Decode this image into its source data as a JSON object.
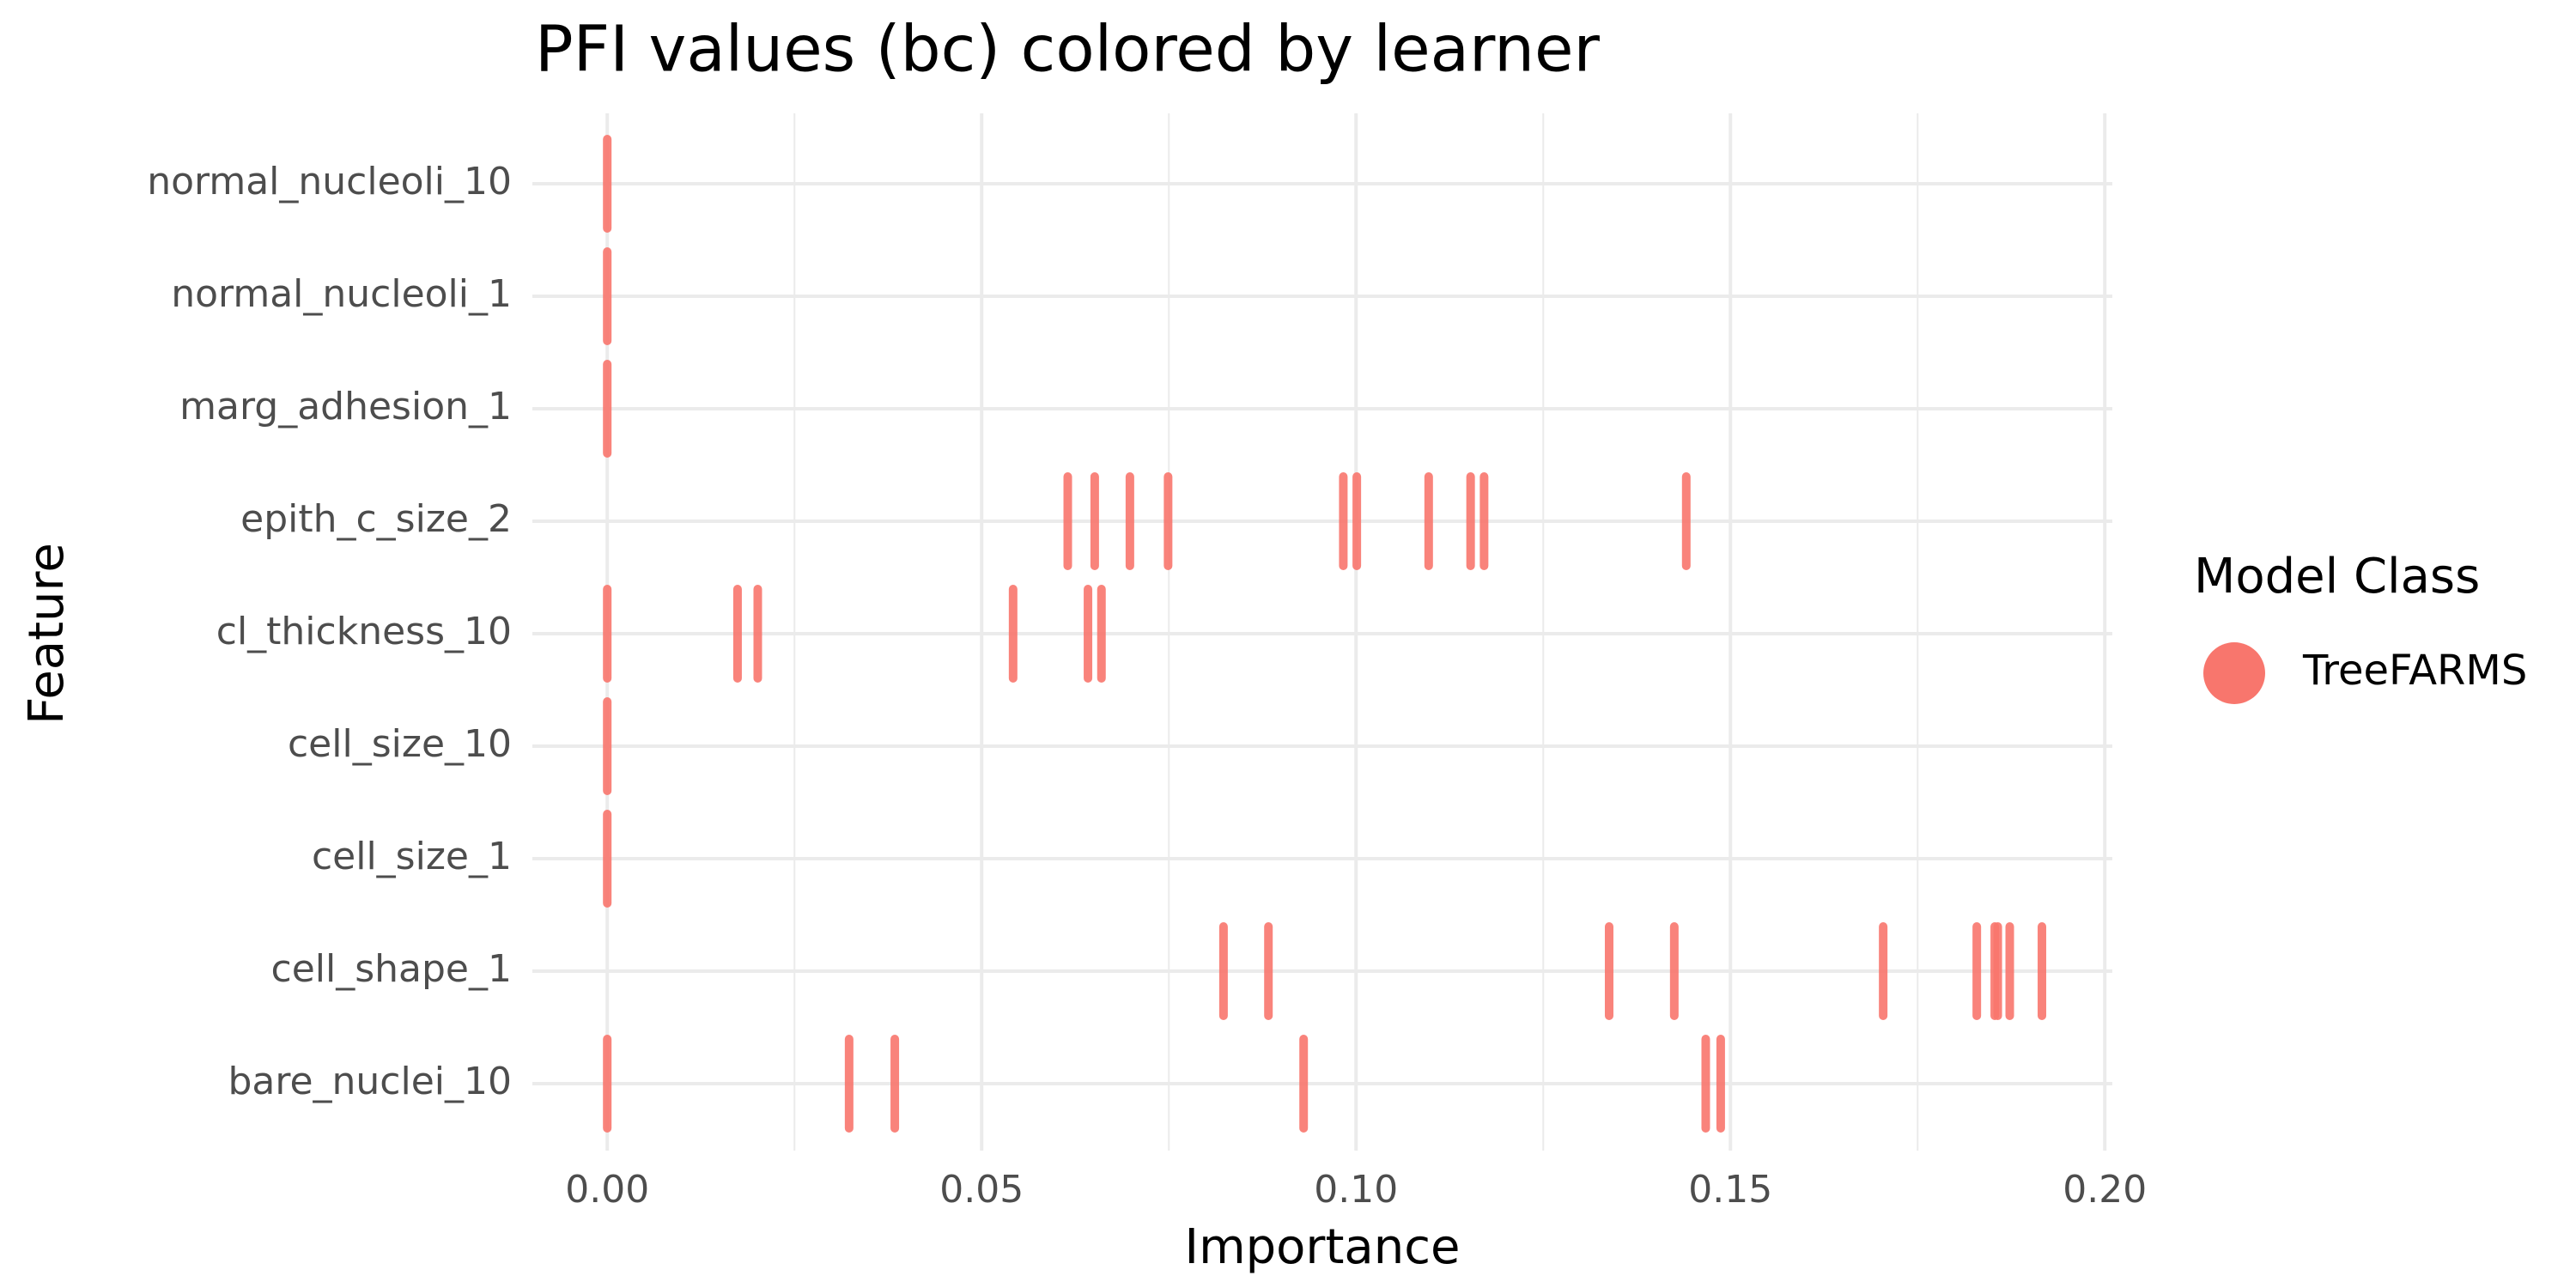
{
  "chart_data": {
    "type": "strip",
    "title": "PFI values (bc) colored by learner",
    "x_label": "Importance",
    "y_label": "Feature",
    "legend_title": "Model Class",
    "legend_position": "right",
    "grid": true,
    "categories": [
      "bare_nuclei_10",
      "cell_shape_1",
      "cell_size_1",
      "cell_size_10",
      "cl_thickness_10",
      "epith_c_size_2",
      "marg_adhesion_1",
      "normal_nucleoli_1",
      "normal_nucleoli_10"
    ],
    "series": [
      {
        "name": "TreeFARMS",
        "color": "#F8766D",
        "values": [
          [
            0,
            0.0323,
            0.0384,
            0.093,
            0.1467,
            0.1487
          ],
          [
            0.0823,
            0.0883,
            0.1338,
            0.1425,
            0.1704,
            0.1829,
            0.1853,
            0.1857,
            0.1873,
            0.1916
          ],
          [
            0
          ],
          [
            0
          ],
          [
            0,
            0.0174,
            0.0201,
            0.0542,
            0.0642,
            0.066
          ],
          [
            0.0615,
            0.0651,
            0.0698,
            0.0749,
            0.0983,
            0.1001,
            0.1097,
            0.1153,
            0.1171,
            0.1441
          ],
          [
            0
          ],
          [
            0
          ],
          [
            0
          ]
        ]
      }
    ],
    "xlim": [
      -0.01,
      0.201
    ],
    "xticks": [
      {
        "value": 0,
        "label": "0.00"
      },
      {
        "value": 0.05,
        "label": "0.05"
      },
      {
        "value": 0.1,
        "label": "0.10"
      },
      {
        "value": 0.15,
        "label": "0.15"
      },
      {
        "value": 0.2,
        "label": "0.20"
      }
    ]
  }
}
